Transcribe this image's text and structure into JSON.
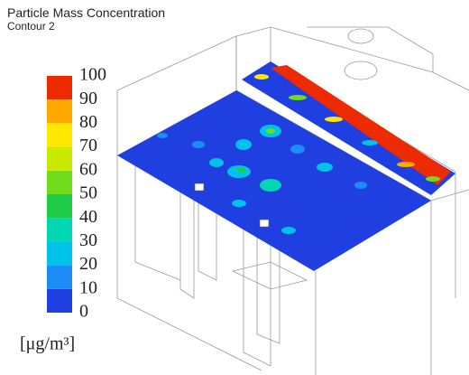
{
  "header": {
    "title": "Particle Mass Concentration",
    "subtitle": "Contour 2"
  },
  "colorbar": {
    "ticks": [
      0,
      10,
      20,
      30,
      40,
      50,
      60,
      70,
      80,
      90,
      100
    ],
    "colors": [
      "#1f3fe0",
      "#1e8cf5",
      "#00c3ea",
      "#00d6b4",
      "#1fcc4a",
      "#6fdc1e",
      "#c8ea00",
      "#ffe800",
      "#ffa800",
      "#ee2a00"
    ],
    "unit": "[μg/m³]"
  }
}
